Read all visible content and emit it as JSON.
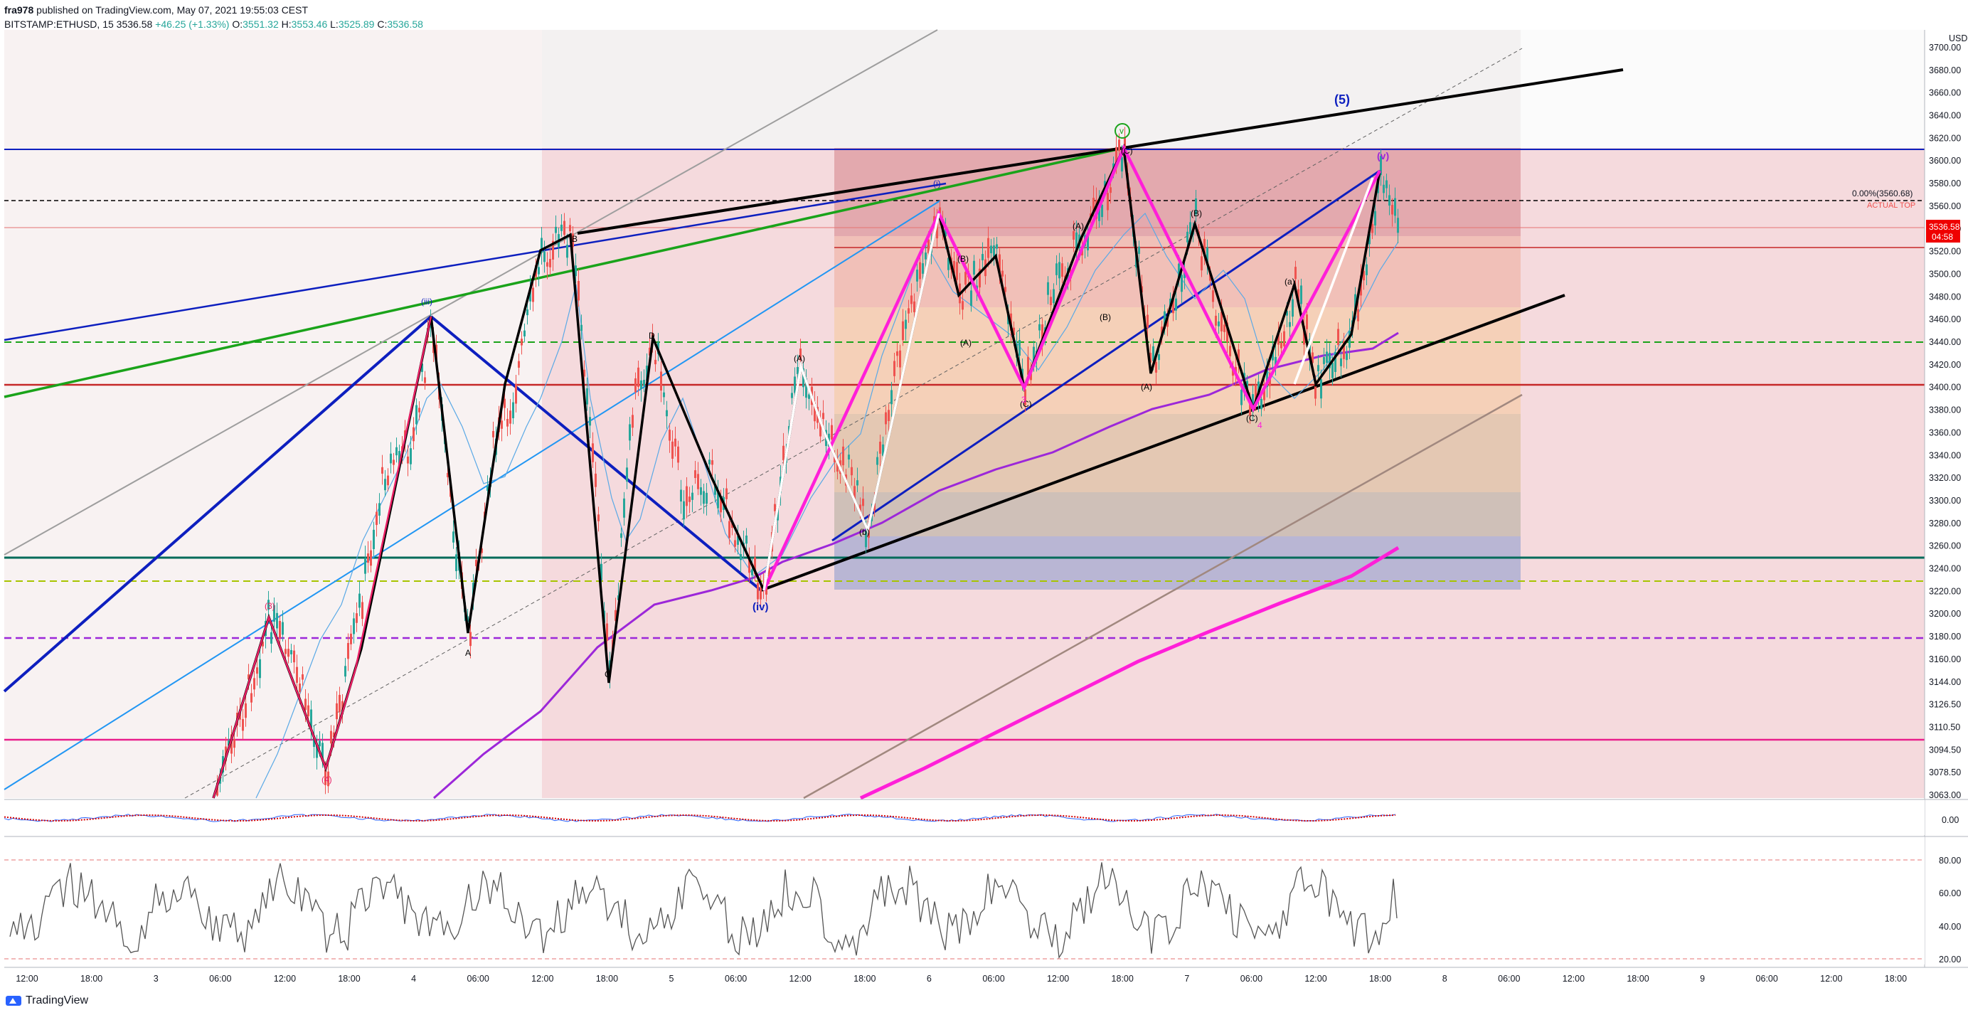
{
  "header": {
    "author": "fra978",
    "published": "published on TradingView.com, May 07, 2021 19:55:03 CEST",
    "symbol": "BITSTAMP:ETHUSD, 15",
    "last": "3536.58",
    "change": "+46.25 (+1.33%)",
    "o_label": "O:",
    "o": "3551.32",
    "h_label": "H:",
    "h": "3553.46",
    "l_label": "L:",
    "l": "3525.89",
    "c_label": "C:",
    "c": "3536.58"
  },
  "price_axis": {
    "currency": "USD",
    "ticks": [
      "3700.00",
      "3680.00",
      "3660.00",
      "3640.00",
      "3620.00",
      "3600.00",
      "3580.00",
      "3560.00",
      "3540.00",
      "3520.00",
      "3500.00",
      "3480.00",
      "3460.00",
      "3440.00",
      "3420.00",
      "3400.00",
      "3380.00",
      "3360.00",
      "3340.00",
      "3320.00",
      "3300.00",
      "3280.00",
      "3260.00",
      "3240.00",
      "3220.00",
      "3200.00",
      "3180.00",
      "3160.00",
      "3144.00",
      "3126.50",
      "3110.50",
      "3094.50",
      "3078.50",
      "3063.00"
    ],
    "last_price": "3536.58",
    "countdown": "04:58",
    "fib_label": "0.00%(3560.68)",
    "actual_top": "ACTUAL TOP"
  },
  "time_axis": [
    "12:00",
    "18:00",
    "3",
    "06:00",
    "12:00",
    "18:00",
    "4",
    "06:00",
    "12:00",
    "18:00",
    "5",
    "06:00",
    "12:00",
    "18:00",
    "6",
    "06:00",
    "12:00",
    "18:00",
    "7",
    "06:00",
    "12:00",
    "18:00",
    "8",
    "06:00",
    "12:00",
    "18:00",
    "9",
    "06:00",
    "12:00",
    "18:00"
  ],
  "macd_axis": [
    "0.00"
  ],
  "rsi_axis": [
    "80.00",
    "60.00",
    "40.00",
    "20.00"
  ],
  "wave_labels": {
    "w3": "(3)",
    "w4": "(4)",
    "A1": "A",
    "B1": "B",
    "C1": "C",
    "D1": "D",
    "iv": "(iv)",
    "iii": "(iii)",
    "A2": "(A)",
    "B2": "(B)",
    "a2": "(A)",
    "b2": "(B)",
    "c2": "(C)",
    "v1": "v",
    "A3": "(A)",
    "B3": "(B)",
    "C3": "(C)",
    "A4": "(A)",
    "B4": "(B)",
    "C4": "(C)",
    "w5": "(5)",
    "vv": "(v)",
    "n3": "3",
    "n4": "4",
    "n5": "5",
    "ni": "(i)",
    "x": "(a)",
    "xb": "(b)"
  },
  "colors": {
    "up": "#26a69a",
    "down": "#ef5350",
    "bg_zone": "#f3d6d8",
    "blue": "#0d1fbf",
    "green": "#1aa31a",
    "magenta": "#ff1fd8",
    "purple": "#9c27d9",
    "red_line": "#c62828",
    "teal": "#006b5a"
  },
  "footer": {
    "brand": "TradingView"
  }
}
